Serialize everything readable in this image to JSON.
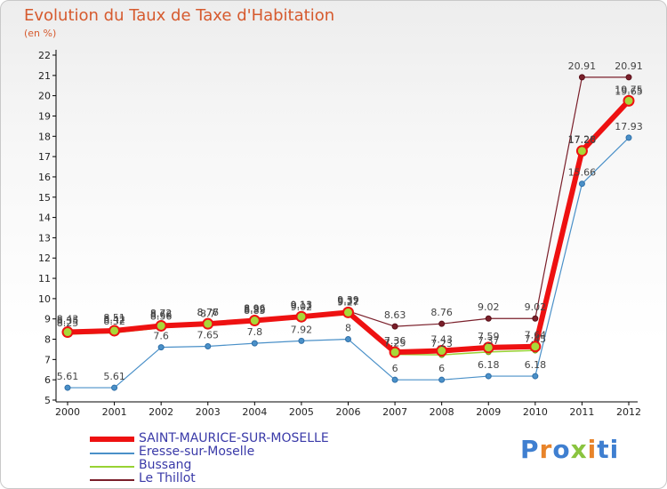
{
  "title": "Evolution du Taux de Taxe d'Habitation",
  "unit_label": "(en %)",
  "logo": {
    "letters": [
      "P",
      "r",
      "o",
      "x",
      "i",
      "ti"
    ]
  },
  "chart_data": {
    "type": "line",
    "x": [
      "2000",
      "2001",
      "2002",
      "2003",
      "2004",
      "2005",
      "2006",
      "2007",
      "2008",
      "2009",
      "2010",
      "2011",
      "2012"
    ],
    "ylim": [
      5,
      22
    ],
    "yticks": [
      5,
      6,
      7,
      8,
      9,
      10,
      11,
      12,
      13,
      14,
      15,
      16,
      17,
      18,
      19,
      20,
      21,
      22
    ],
    "grid": false,
    "legend_placement": "bottom-left",
    "series": [
      {
        "name": "Le Thillot",
        "color": "#7a1f2a",
        "values": [
          8.43,
          8.51,
          8.72,
          8.77,
          8.96,
          9.13,
          9.39,
          8.63,
          8.76,
          9.02,
          9.02,
          20.91,
          20.91
        ],
        "labels": [
          "8.43",
          "8.51",
          "8.72",
          "8.77",
          "8.96",
          "9.13",
          "9.39",
          "8.63",
          "8.76",
          "9.02",
          "9.02",
          "20.91",
          "20.91"
        ]
      },
      {
        "name": "Eresse-sur-Moselle",
        "color": "#4a90c8",
        "values": [
          5.61,
          5.61,
          7.6,
          7.65,
          7.8,
          7.92,
          8,
          6,
          6,
          6.18,
          6.18,
          15.66,
          17.93
        ],
        "labels": [
          "5.61",
          "5.61",
          "7.6",
          "7.65",
          "7.8",
          "7.92",
          "8",
          "6",
          "6",
          "6.18",
          "6.18",
          "15.66",
          "17.93"
        ]
      },
      {
        "name": "Bussang",
        "color": "#98d233",
        "values": [
          8.25,
          8.32,
          8.56,
          8.7,
          8.85,
          9.02,
          9.27,
          7.25,
          7.23,
          7.37,
          7.45,
          17.26,
          19.65
        ],
        "labels": [
          "8.25",
          "8.32",
          "8.56",
          "8.7",
          "8.85",
          "9.02",
          "9.27",
          "7.25",
          "7.23",
          "7.37",
          "7.45",
          "17.26",
          "19.65"
        ]
      },
      {
        "name": "SAINT-MAURICE-SUR-MOSELLE",
        "color": "#ee1111",
        "values": [
          8.35,
          8.42,
          8.66,
          8.76,
          8.92,
          9.11,
          9.32,
          7.36,
          7.43,
          7.59,
          7.64,
          17.28,
          19.75
        ],
        "labels": [
          "8.35",
          "8.42",
          "8.66",
          "8.76",
          "8.92",
          "9.11",
          "9.32",
          "7.36",
          "7.43",
          "7.59",
          "7.64",
          "17.28",
          "19.75"
        ]
      }
    ]
  }
}
